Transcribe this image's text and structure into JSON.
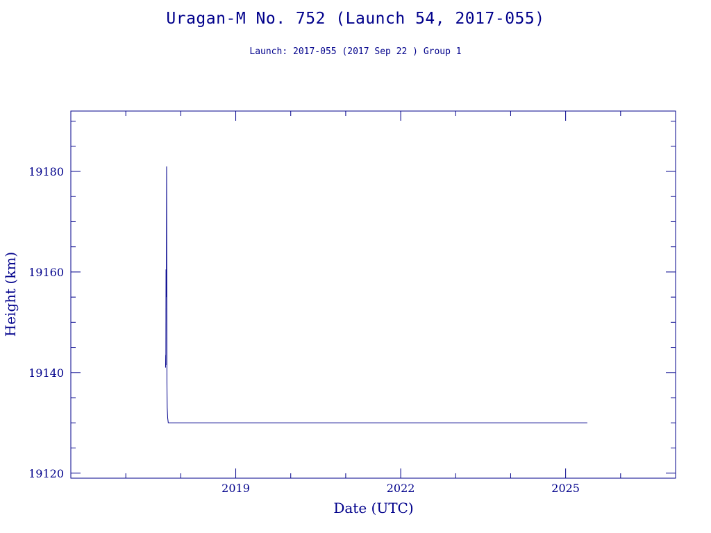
{
  "header": {
    "title": "Uragan-M No. 752 (Launch 54, 2017-055)",
    "subtitle": "Launch: 2017-055  (2017 Sep 22 )  Group 1"
  },
  "chart_data": {
    "type": "line",
    "title": "Uragan-M No. 752 (Launch 54, 2017-055)",
    "subtitle": "Launch: 2017-055  (2017 Sep 22 )  Group 1",
    "xlabel": "Date (UTC)",
    "ylabel": "Height (km)",
    "xlim": [
      "2016-01-01",
      "2026-12-31"
    ],
    "ylim": [
      19119,
      19192
    ],
    "x_ticks": [
      "2019",
      "2022",
      "2025"
    ],
    "y_ticks": [
      19120,
      19140,
      19160,
      19180
    ],
    "grid": false,
    "color": "#00008b",
    "series": [
      {
        "points": [
          [
            "2017-09-22",
            19141.0
          ],
          [
            "2017-09-23",
            19143.5
          ],
          [
            "2017-09-24",
            19141.5
          ],
          [
            "2017-09-25",
            19160.5
          ],
          [
            "2017-09-27",
            19155.0
          ],
          [
            "2017-09-29",
            19181.0
          ],
          [
            "2017-10-01",
            19138.0
          ],
          [
            "2017-10-03",
            19133.0
          ],
          [
            "2017-10-06",
            19131.0
          ],
          [
            "2017-10-10",
            19130.0
          ],
          [
            "2018-06-01",
            19130.0
          ],
          [
            "2019-06-01",
            19130.0
          ],
          [
            "2020-06-01",
            19130.0
          ],
          [
            "2021-06-01",
            19130.0
          ],
          [
            "2022-06-01",
            19130.0
          ],
          [
            "2023-06-01",
            19130.0
          ],
          [
            "2024-06-01",
            19130.0
          ],
          [
            "2025-05-25",
            19130.0
          ]
        ]
      }
    ]
  }
}
